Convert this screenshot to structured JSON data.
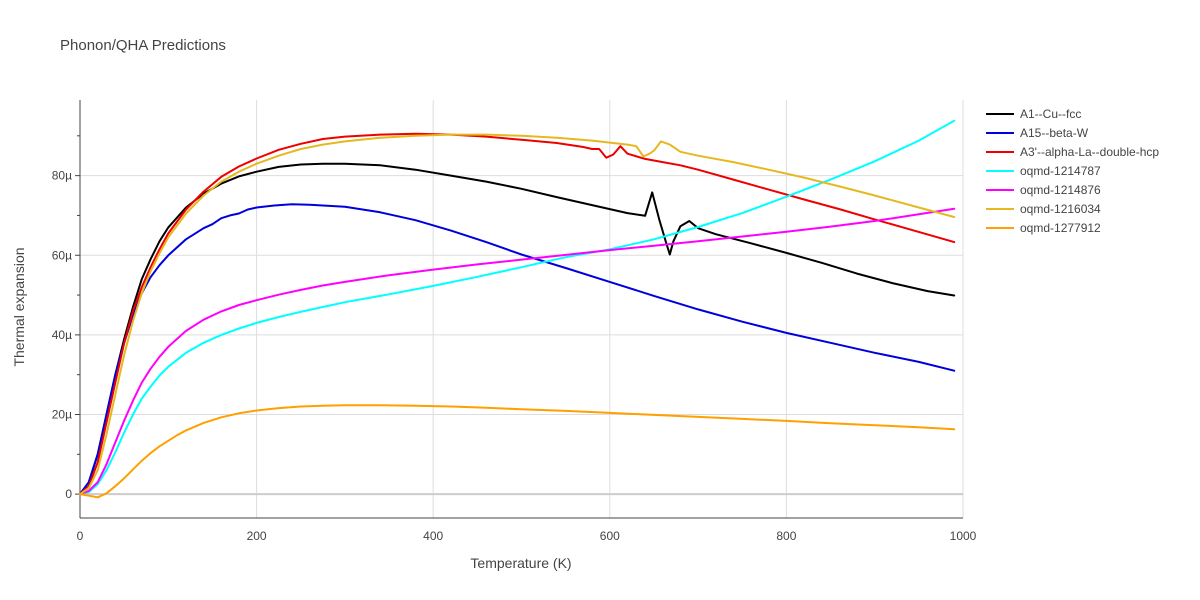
{
  "chart_data": {
    "type": "line",
    "title": "Phonon/QHA Predictions",
    "xlabel": "Temperature (K)",
    "ylabel": "Thermal expansion",
    "xlim": [
      0,
      1000
    ],
    "ylim": [
      -6e-06,
      9.9e-05
    ],
    "x_ticks": [
      0,
      200,
      400,
      600,
      800,
      1000
    ],
    "x_tick_labels": [
      "0",
      "200",
      "400",
      "600",
      "800",
      "1000"
    ],
    "y_ticks": [
      0,
      2e-05,
      4e-05,
      6e-05,
      8e-05
    ],
    "y_tick_labels": [
      "0",
      "20µ",
      "40µ",
      "60µ",
      "80µ"
    ],
    "grid": true,
    "legend_position": "right",
    "series": [
      {
        "name": "A1--Cu--fcc",
        "color": "#000000",
        "x": [
          0,
          10,
          20,
          30,
          40,
          50,
          60,
          70,
          80,
          90,
          100,
          120,
          140,
          160,
          180,
          200,
          225,
          250,
          275,
          300,
          340,
          380,
          420,
          460,
          500,
          540,
          580,
          620,
          640,
          648,
          656,
          664,
          668,
          672,
          680,
          690,
          700,
          720,
          760,
          800,
          840,
          880,
          920,
          960,
          990
        ],
        "y": [
          0,
          3e-06,
          1e-05,
          2e-05,
          3e-05,
          3.9e-05,
          4.7e-05,
          5.4e-05,
          5.9e-05,
          6.35e-05,
          6.7e-05,
          7.2e-05,
          7.55e-05,
          7.8e-05,
          7.98e-05,
          8.1e-05,
          8.22e-05,
          8.28e-05,
          8.3e-05,
          8.3e-05,
          8.26e-05,
          8.15e-05,
          8e-05,
          7.85e-05,
          7.67e-05,
          7.46e-05,
          7.26e-05,
          7.06e-05,
          6.99e-05,
          7.58e-05,
          6.9e-05,
          6.3e-05,
          6.02e-05,
          6.35e-05,
          6.73e-05,
          6.86e-05,
          6.68e-05,
          6.53e-05,
          6.3e-05,
          6.06e-05,
          5.81e-05,
          5.54e-05,
          5.3e-05,
          5.1e-05,
          4.99e-05
        ]
      },
      {
        "name": "A15--beta-W",
        "color": "#0000dd",
        "x": [
          0,
          10,
          20,
          30,
          40,
          50,
          60,
          70,
          80,
          90,
          100,
          120,
          140,
          150,
          160,
          170,
          180,
          190,
          200,
          220,
          240,
          260,
          300,
          340,
          380,
          420,
          460,
          500,
          550,
          600,
          650,
          700,
          750,
          800,
          850,
          900,
          950,
          990
        ],
        "y": [
          0,
          3e-06,
          1e-05,
          2e-05,
          3e-05,
          3.8e-05,
          4.5e-05,
          5.05e-05,
          5.45e-05,
          5.75e-05,
          6e-05,
          6.4e-05,
          6.68e-05,
          6.78e-05,
          6.93e-05,
          7e-05,
          7.05e-05,
          7.15e-05,
          7.2e-05,
          7.25e-05,
          7.28e-05,
          7.27e-05,
          7.22e-05,
          7.08e-05,
          6.88e-05,
          6.62e-05,
          6.33e-05,
          6.02e-05,
          5.68e-05,
          5.33e-05,
          4.98e-05,
          4.64e-05,
          4.33e-05,
          4.05e-05,
          3.8e-05,
          3.55e-05,
          3.32e-05,
          3.1e-05
        ]
      },
      {
        "name": "A3'--alpha-La--double-hcp",
        "color": "#ee0000",
        "x": [
          0,
          10,
          20,
          30,
          40,
          50,
          60,
          70,
          80,
          90,
          100,
          120,
          140,
          160,
          180,
          200,
          225,
          250,
          275,
          300,
          340,
          380,
          420,
          460,
          500,
          540,
          570,
          580,
          588,
          596,
          604,
          612,
          620,
          640,
          660,
          680,
          700,
          740,
          780,
          820,
          860,
          900,
          940,
          990
        ],
        "y": [
          0,
          2e-06,
          8e-06,
          1.8e-05,
          2.8e-05,
          3.8e-05,
          4.6e-05,
          5.2e-05,
          5.7e-05,
          6.15e-05,
          6.55e-05,
          7.15e-05,
          7.6e-05,
          7.97e-05,
          8.23e-05,
          8.43e-05,
          8.65e-05,
          8.8e-05,
          8.92e-05,
          8.98e-05,
          9.03e-05,
          9.05e-05,
          9.03e-05,
          8.98e-05,
          8.9e-05,
          8.82e-05,
          8.72e-05,
          8.67e-05,
          8.67e-05,
          8.45e-05,
          8.53e-05,
          8.74e-05,
          8.55e-05,
          8.42e-05,
          8.34e-05,
          8.26e-05,
          8.15e-05,
          7.9e-05,
          7.65e-05,
          7.4e-05,
          7.16e-05,
          6.9e-05,
          6.65e-05,
          6.33e-05
        ]
      },
      {
        "name": "oqmd-1214787",
        "color": "#00ffff",
        "x": [
          0,
          10,
          20,
          30,
          40,
          50,
          60,
          70,
          80,
          90,
          100,
          120,
          140,
          160,
          180,
          200,
          225,
          250,
          275,
          300,
          350,
          400,
          450,
          500,
          550,
          600,
          650,
          700,
          750,
          800,
          850,
          900,
          950,
          990
        ],
        "y": [
          0,
          5e-07,
          2.5e-06,
          6e-06,
          1.05e-05,
          1.55e-05,
          2e-05,
          2.4e-05,
          2.7e-05,
          2.98e-05,
          3.2e-05,
          3.55e-05,
          3.8e-05,
          4e-05,
          4.16e-05,
          4.3e-05,
          4.45e-05,
          4.58e-05,
          4.7e-05,
          4.82e-05,
          5.02e-05,
          5.23e-05,
          5.46e-05,
          5.7e-05,
          5.95e-05,
          6.15e-05,
          6.4e-05,
          6.71e-05,
          7.06e-05,
          7.47e-05,
          7.9e-05,
          8.36e-05,
          8.88e-05,
          9.38e-05
        ]
      },
      {
        "name": "oqmd-1214876",
        "color": "#ff00ff",
        "x": [
          0,
          10,
          20,
          30,
          40,
          50,
          60,
          70,
          80,
          90,
          100,
          120,
          140,
          160,
          180,
          200,
          225,
          250,
          275,
          300,
          350,
          400,
          450,
          500,
          550,
          600,
          650,
          700,
          750,
          800,
          850,
          900,
          950,
          990
        ],
        "y": [
          0,
          8e-07,
          3e-06,
          7.5e-06,
          1.3e-05,
          1.85e-05,
          2.35e-05,
          2.8e-05,
          3.15e-05,
          3.45e-05,
          3.7e-05,
          4.1e-05,
          4.38e-05,
          4.59e-05,
          4.75e-05,
          4.87e-05,
          5.01e-05,
          5.13e-05,
          5.24e-05,
          5.33e-05,
          5.5e-05,
          5.64e-05,
          5.77e-05,
          5.89e-05,
          6.01e-05,
          6.13e-05,
          6.24e-05,
          6.35e-05,
          6.47e-05,
          6.59e-05,
          6.72e-05,
          6.86e-05,
          7.03e-05,
          7.17e-05
        ]
      },
      {
        "name": "oqmd-1216034",
        "color": "#e6b820",
        "x": [
          0,
          10,
          20,
          30,
          40,
          50,
          60,
          70,
          80,
          90,
          100,
          120,
          140,
          160,
          180,
          200,
          225,
          250,
          275,
          300,
          340,
          380,
          420,
          460,
          500,
          540,
          580,
          620,
          630,
          638,
          645,
          650,
          658,
          668,
          680,
          700,
          740,
          780,
          820,
          860,
          900,
          950,
          990
        ],
        "y": [
          0,
          1.5e-06,
          6e-06,
          1.5e-05,
          2.5e-05,
          3.5e-05,
          4.35e-05,
          5.05e-05,
          5.6e-05,
          6.05e-05,
          6.45e-05,
          7.05e-05,
          7.5e-05,
          7.85e-05,
          8.1e-05,
          8.3e-05,
          8.5e-05,
          8.67e-05,
          8.78e-05,
          8.86e-05,
          8.95e-05,
          9e-05,
          9.03e-05,
          9.03e-05,
          9e-05,
          8.95e-05,
          8.88e-05,
          8.78e-05,
          8.74e-05,
          8.48e-05,
          8.55e-05,
          8.63e-05,
          8.86e-05,
          8.78e-05,
          8.6e-05,
          8.5e-05,
          8.34e-05,
          8.15e-05,
          7.95e-05,
          7.73e-05,
          7.5e-05,
          7.2e-05,
          6.96e-05
        ]
      },
      {
        "name": "oqmd-1277912",
        "color": "#ff9f00",
        "x": [
          0,
          10,
          20,
          30,
          40,
          50,
          60,
          70,
          80,
          90,
          100,
          110,
          120,
          140,
          160,
          180,
          200,
          225,
          250,
          275,
          300,
          340,
          380,
          420,
          460,
          500,
          550,
          600,
          650,
          700,
          750,
          800,
          850,
          900,
          950,
          990
        ],
        "y": [
          0,
          -4e-07,
          -8e-07,
          2e-07,
          2e-06,
          4e-06,
          6.2e-06,
          8.4e-06,
          1.03e-05,
          1.2e-05,
          1.34e-05,
          1.48e-05,
          1.6e-05,
          1.79e-05,
          1.93e-05,
          2.03e-05,
          2.1e-05,
          2.16e-05,
          2.2e-05,
          2.22e-05,
          2.23e-05,
          2.23e-05,
          2.22e-05,
          2.2e-05,
          2.17e-05,
          2.13e-05,
          2.09e-05,
          2.04e-05,
          1.99e-05,
          1.94e-05,
          1.89e-05,
          1.84e-05,
          1.78e-05,
          1.73e-05,
          1.68e-05,
          1.63e-05
        ]
      }
    ]
  }
}
